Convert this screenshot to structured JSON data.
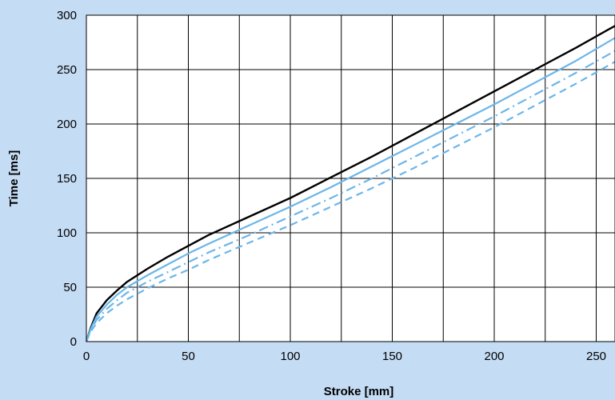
{
  "chart_data": {
    "type": "line",
    "xlabel": "Stroke [mm]",
    "ylabel": "Time [ms]",
    "xlim": [
      0,
      260
    ],
    "ylim": [
      0,
      300
    ],
    "x_ticks": [
      0,
      50,
      100,
      150,
      200,
      250
    ],
    "y_ticks": [
      0,
      50,
      100,
      150,
      200,
      250,
      300
    ],
    "grid": true,
    "series": [
      {
        "style": "solid",
        "color": "#000000",
        "points": [
          [
            0,
            0
          ],
          [
            2,
            12
          ],
          [
            5,
            26
          ],
          [
            10,
            38
          ],
          [
            15,
            47
          ],
          [
            20,
            55
          ],
          [
            30,
            67
          ],
          [
            40,
            78
          ],
          [
            50,
            88
          ],
          [
            60,
            98
          ],
          [
            80,
            115
          ],
          [
            100,
            132
          ],
          [
            120,
            151
          ],
          [
            140,
            170
          ],
          [
            160,
            190
          ],
          [
            180,
            210
          ],
          [
            200,
            230
          ],
          [
            220,
            250
          ],
          [
            240,
            270
          ],
          [
            260,
            291
          ]
        ]
      },
      {
        "style": "solid",
        "color": "#6cb6e8",
        "points": [
          [
            0,
            0
          ],
          [
            2,
            11
          ],
          [
            5,
            23
          ],
          [
            10,
            34
          ],
          [
            15,
            43
          ],
          [
            20,
            50
          ],
          [
            30,
            61
          ],
          [
            40,
            71
          ],
          [
            50,
            81
          ],
          [
            60,
            90
          ],
          [
            80,
            107
          ],
          [
            100,
            124
          ],
          [
            120,
            142
          ],
          [
            140,
            161
          ],
          [
            160,
            180
          ],
          [
            180,
            199
          ],
          [
            200,
            218
          ],
          [
            220,
            238
          ],
          [
            240,
            258
          ],
          [
            260,
            280
          ]
        ]
      },
      {
        "style": "dashdot",
        "color": "#6cb6e8",
        "points": [
          [
            0,
            0
          ],
          [
            2,
            10
          ],
          [
            5,
            20
          ],
          [
            10,
            30
          ],
          [
            15,
            38
          ],
          [
            20,
            45
          ],
          [
            30,
            55
          ],
          [
            40,
            64
          ],
          [
            50,
            73
          ],
          [
            60,
            82
          ],
          [
            80,
            98
          ],
          [
            100,
            115
          ],
          [
            120,
            132
          ],
          [
            140,
            150
          ],
          [
            160,
            169
          ],
          [
            180,
            188
          ],
          [
            200,
            207
          ],
          [
            220,
            227
          ],
          [
            240,
            247
          ],
          [
            260,
            268
          ]
        ]
      },
      {
        "style": "dashed",
        "color": "#6cb6e8",
        "points": [
          [
            0,
            0
          ],
          [
            2,
            9
          ],
          [
            5,
            17
          ],
          [
            10,
            26
          ],
          [
            15,
            33
          ],
          [
            20,
            39
          ],
          [
            30,
            49
          ],
          [
            40,
            58
          ],
          [
            50,
            66
          ],
          [
            60,
            75
          ],
          [
            80,
            91
          ],
          [
            100,
            107
          ],
          [
            120,
            124
          ],
          [
            140,
            141
          ],
          [
            160,
            159
          ],
          [
            180,
            178
          ],
          [
            200,
            197
          ],
          [
            220,
            217
          ],
          [
            240,
            237
          ],
          [
            260,
            258
          ]
        ]
      }
    ]
  }
}
